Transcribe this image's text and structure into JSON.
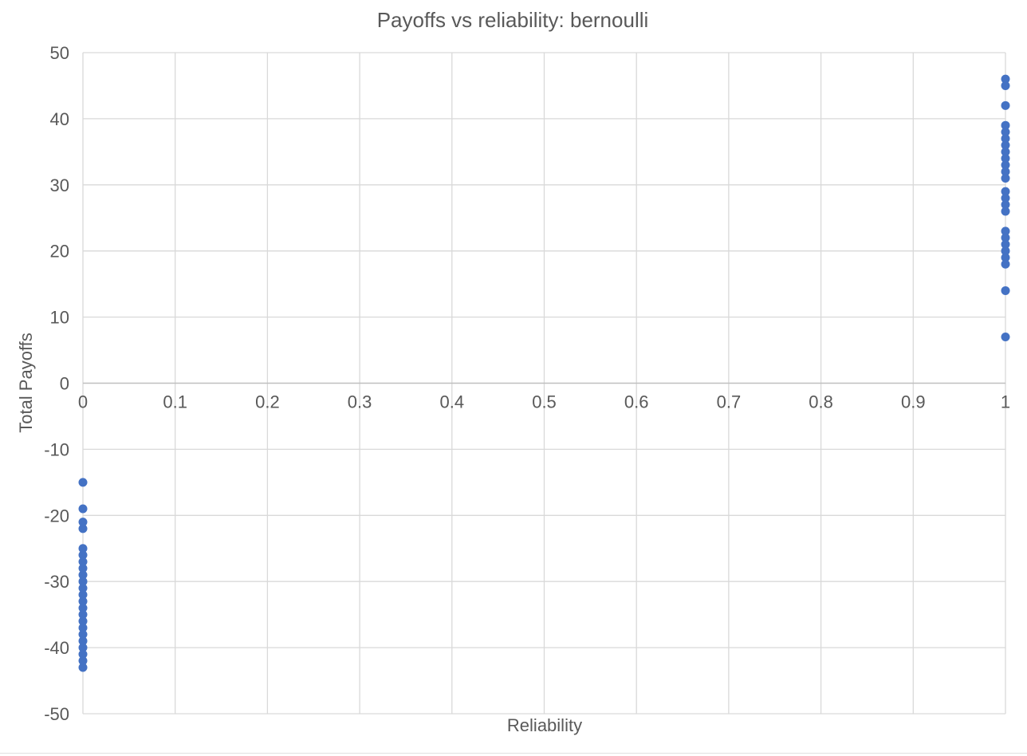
{
  "chart_data": {
    "type": "scatter",
    "title": "Payoffs vs reliability: bernoulli",
    "xlabel": "Reliability",
    "ylabel": "Total Payoffs",
    "xlim": [
      0,
      1
    ],
    "ylim": [
      -50,
      50
    ],
    "x_ticks": [
      0,
      0.1,
      0.2,
      0.3,
      0.4,
      0.5,
      0.6,
      0.7,
      0.8,
      0.9,
      1
    ],
    "x_tick_labels": [
      "0",
      "0.1",
      "0.2",
      "0.3",
      "0.4",
      "0.5",
      "0.6",
      "0.7",
      "0.8",
      "0.9",
      "1"
    ],
    "y_ticks": [
      50,
      40,
      30,
      20,
      10,
      0,
      -10,
      -20,
      -30,
      -40,
      -50
    ],
    "y_tick_labels": [
      "50",
      "40",
      "30",
      "20",
      "10",
      "0",
      "-10",
      "-20",
      "-30",
      "-40",
      "-50"
    ],
    "grid": true,
    "legend": "none",
    "marker_color": "#4472c4",
    "series": [
      {
        "points": [
          {
            "x": 1,
            "y": 46
          },
          {
            "x": 1,
            "y": 45
          },
          {
            "x": 1,
            "y": 42
          },
          {
            "x": 1,
            "y": 39
          },
          {
            "x": 1,
            "y": 38
          },
          {
            "x": 1,
            "y": 37
          },
          {
            "x": 1,
            "y": 36
          },
          {
            "x": 1,
            "y": 35
          },
          {
            "x": 1,
            "y": 34
          },
          {
            "x": 1,
            "y": 33
          },
          {
            "x": 1,
            "y": 32
          },
          {
            "x": 1,
            "y": 31
          },
          {
            "x": 1,
            "y": 29
          },
          {
            "x": 1,
            "y": 28
          },
          {
            "x": 1,
            "y": 27
          },
          {
            "x": 1,
            "y": 26
          },
          {
            "x": 1,
            "y": 23
          },
          {
            "x": 1,
            "y": 22
          },
          {
            "x": 1,
            "y": 21
          },
          {
            "x": 1,
            "y": 20
          },
          {
            "x": 1,
            "y": 19
          },
          {
            "x": 1,
            "y": 18
          },
          {
            "x": 1,
            "y": 14
          },
          {
            "x": 1,
            "y": 7
          },
          {
            "x": 0,
            "y": -15
          },
          {
            "x": 0,
            "y": -19
          },
          {
            "x": 0,
            "y": -21
          },
          {
            "x": 0,
            "y": -22
          },
          {
            "x": 0,
            "y": -25
          },
          {
            "x": 0,
            "y": -26
          },
          {
            "x": 0,
            "y": -27
          },
          {
            "x": 0,
            "y": -28
          },
          {
            "x": 0,
            "y": -29
          },
          {
            "x": 0,
            "y": -30
          },
          {
            "x": 0,
            "y": -31
          },
          {
            "x": 0,
            "y": -32
          },
          {
            "x": 0,
            "y": -33
          },
          {
            "x": 0,
            "y": -34
          },
          {
            "x": 0,
            "y": -35
          },
          {
            "x": 0,
            "y": -36
          },
          {
            "x": 0,
            "y": -37
          },
          {
            "x": 0,
            "y": -38
          },
          {
            "x": 0,
            "y": -39
          },
          {
            "x": 0,
            "y": -40
          },
          {
            "x": 0,
            "y": -41
          },
          {
            "x": 0,
            "y": -42
          },
          {
            "x": 0,
            "y": -43
          }
        ]
      }
    ]
  }
}
